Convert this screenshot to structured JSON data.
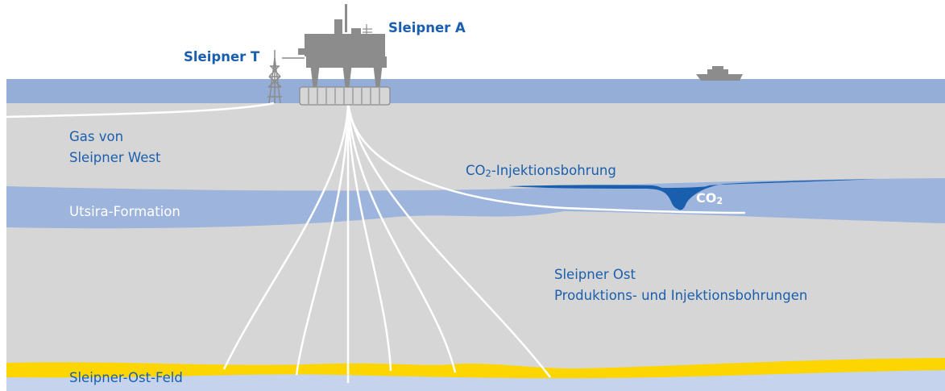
{
  "labels": {
    "sleipner_a": "Sleipner A",
    "sleipner_t": "Sleipner T",
    "gas_line1": "Gas von",
    "gas_line2": "Sleipner West",
    "co2_prefix": "CO",
    "co2_sub": "2",
    "co2_injection_suffix": "-Injektionsbohrung",
    "co2_plume_prefix": "CO",
    "co2_plume_sub": "2",
    "utsira": "Utsira-Formation",
    "ost_line1": "Sleipner Ost",
    "ost_line2": "Produktions- und Injektionsbohrungen",
    "field": "Sleipner-Ost-Feld"
  },
  "colors": {
    "sea": "#95aed8",
    "rock": "#d6d6d6",
    "utsira_layer": "#9db4dc",
    "reservoir": "#fdd500",
    "co2_plume": "#1a5fae",
    "platform": "#8c8c8c",
    "wells": "#ffffff",
    "label_blue": "#1a5fae"
  }
}
